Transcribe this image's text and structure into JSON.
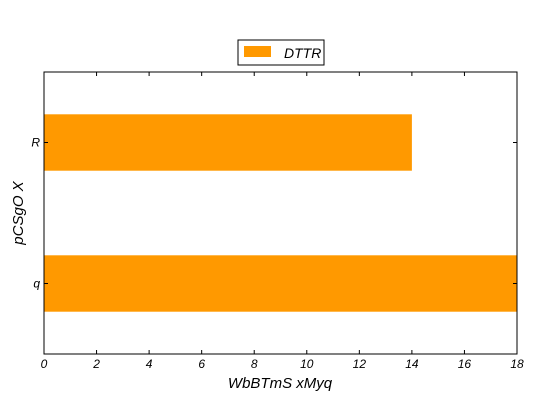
{
  "chart_data": {
    "type": "bar",
    "orientation": "horizontal",
    "categories": [
      "q",
      "R"
    ],
    "series": [
      {
        "name": "DTTR",
        "values": [
          18,
          14
        ]
      }
    ],
    "title": "",
    "xlabel": "WbBTmS xMyq",
    "ylabel": "pCSgO X",
    "xlim": [
      0,
      18
    ],
    "xticks": [
      "0",
      "2",
      "4",
      "6",
      "8",
      "10",
      "12",
      "14",
      "16",
      "18"
    ],
    "grid": false,
    "legend_position": "top-center",
    "colors": {
      "bar": "#ff9900"
    }
  }
}
